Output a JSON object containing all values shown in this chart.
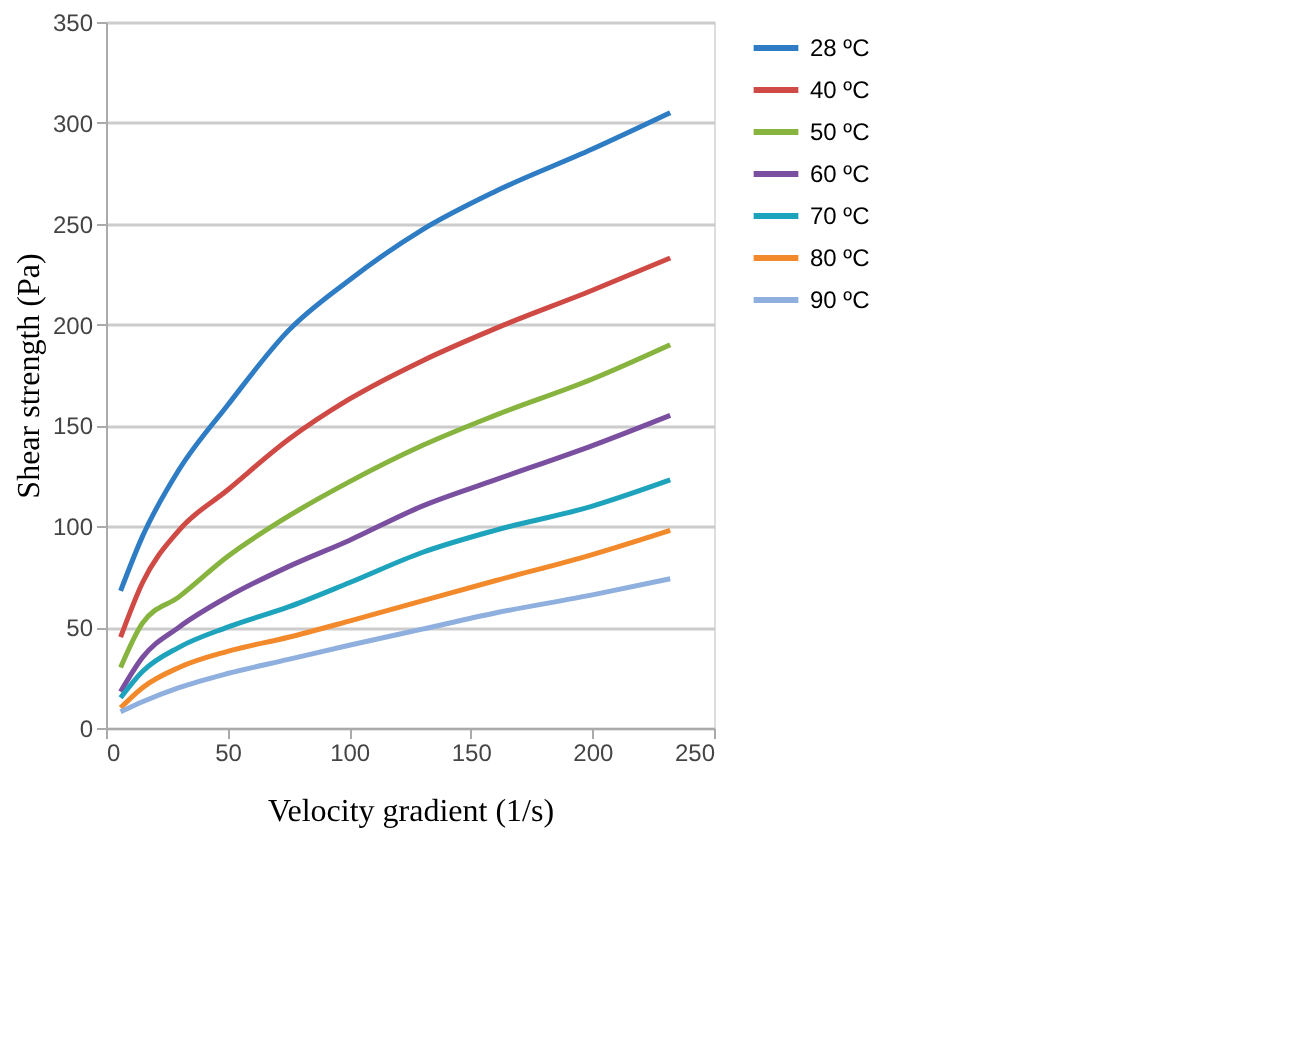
{
  "chart_data": {
    "type": "line",
    "xlabel": "Velocity gradient (1/s)",
    "ylabel": "Shear strength (Pa)",
    "x": [
      6,
      15,
      30,
      50,
      75,
      100,
      130,
      160,
      200,
      232
    ],
    "series": [
      {
        "name": "28 ºC",
        "color": "#2e7cc4",
        "values": [
          68,
          95,
          128,
          160,
          197,
          222,
          247,
          266,
          287,
          305
        ]
      },
      {
        "name": "40 ºC",
        "color": "#d04a45",
        "values": [
          45,
          72,
          98,
          118,
          143,
          163,
          182,
          198,
          217,
          233
        ]
      },
      {
        "name": "50 ºC",
        "color": "#86b43f",
        "values": [
          30,
          52,
          65,
          85,
          105,
          122,
          140,
          155,
          173,
          190
        ]
      },
      {
        "name": "60 ºC",
        "color": "#7b4fa0",
        "values": [
          18,
          35,
          50,
          65,
          80,
          93,
          110,
          123,
          140,
          155
        ]
      },
      {
        "name": "70 ºC",
        "color": "#1ea3bd",
        "values": [
          15,
          28,
          40,
          50,
          60,
          72,
          87,
          98,
          110,
          123
        ]
      },
      {
        "name": "80 ºC",
        "color": "#f28a2c",
        "values": [
          10,
          20,
          30,
          38,
          45,
          53,
          63,
          73,
          86,
          98
        ]
      },
      {
        "name": "90 ºC",
        "color": "#8fb0de",
        "values": [
          8,
          13,
          20,
          27,
          34,
          41,
          49,
          57,
          66,
          74
        ]
      }
    ],
    "xlim": [
      0,
      250
    ],
    "xticks": [
      0,
      50,
      100,
      150,
      200,
      250
    ],
    "ylim": [
      0,
      350
    ],
    "yticks": [
      0,
      50,
      100,
      150,
      200,
      250,
      300,
      350
    ],
    "grid": "y",
    "legend": "right",
    "marker": "none",
    "line_style": "solid"
  }
}
